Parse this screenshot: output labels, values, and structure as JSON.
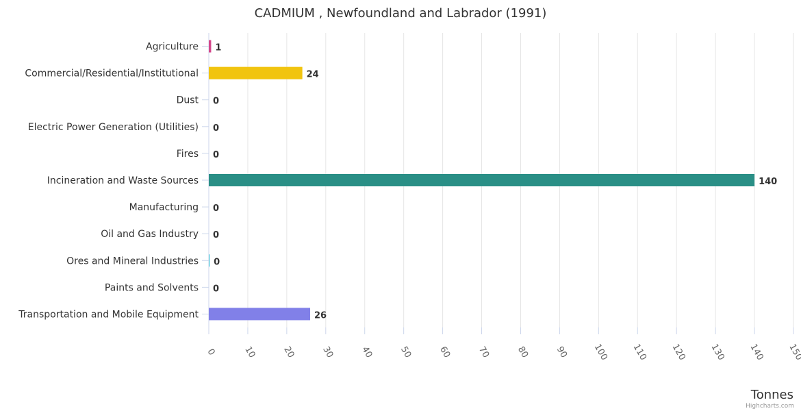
{
  "chart_data": {
    "type": "bar",
    "orientation": "horizontal",
    "title": "CADMIUM , Newfoundland and Labrador (1991)",
    "xlabel": "Tonnes",
    "ylabel": "",
    "categories": [
      "Agriculture",
      "Commercial/Residential/Institutional",
      "Dust",
      "Electric Power Generation (Utilities)",
      "Fires",
      "Incineration and Waste Sources",
      "Manufacturing",
      "Oil and Gas Industry",
      "Ores and Mineral Industries",
      "Paints and Solvents",
      "Transportation and Mobile Equipment"
    ],
    "values": [
      0.6,
      24,
      0,
      0,
      0,
      140,
      0,
      0,
      0.2,
      0,
      26
    ],
    "data_labels": [
      "1",
      "24",
      "0",
      "0",
      "0",
      "140",
      "0",
      "0",
      "0",
      "0",
      "26"
    ],
    "colors": [
      "#d4478b",
      "#f1c40f",
      "#8e44ad",
      "#d35400",
      "#e67e22",
      "#2a8f86",
      "#e67e22",
      "#95a5a6",
      "#3fc1d6",
      "#7f8c8d",
      "#8180e8"
    ],
    "xlim": [
      0,
      150
    ],
    "xticks": [
      0,
      10,
      20,
      30,
      40,
      50,
      60,
      70,
      80,
      90,
      100,
      110,
      120,
      130,
      140,
      150
    ],
    "grid": true,
    "legend": "none"
  },
  "credit": "Highcharts.com"
}
